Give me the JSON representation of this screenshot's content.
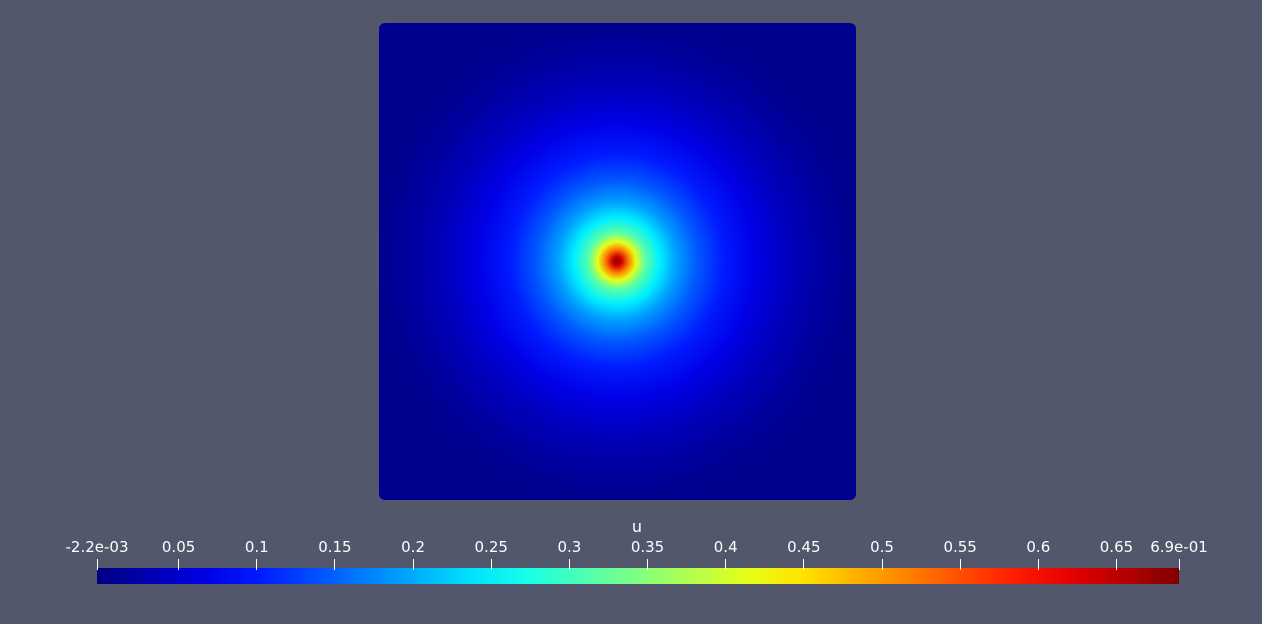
{
  "chart_data": {
    "type": "heatmap",
    "variable": "u",
    "colormap": "jet",
    "colors": {
      "background": "#52576b",
      "low": "#00007f",
      "high": "#7f0000"
    },
    "range": [
      -0.0022,
      0.69
    ],
    "peak": {
      "x": 0.5,
      "y": 0.5,
      "value": 0.69
    },
    "colorbar": {
      "title": "u",
      "ticks": [
        {
          "value": -0.0022,
          "label": "-2.2e-03"
        },
        {
          "value": 0.05,
          "label": "0.05"
        },
        {
          "value": 0.1,
          "label": "0.1"
        },
        {
          "value": 0.15,
          "label": "0.15"
        },
        {
          "value": 0.2,
          "label": "0.2"
        },
        {
          "value": 0.25,
          "label": "0.25"
        },
        {
          "value": 0.3,
          "label": "0.3"
        },
        {
          "value": 0.35,
          "label": "0.35"
        },
        {
          "value": 0.4,
          "label": "0.4"
        },
        {
          "value": 0.45,
          "label": "0.45"
        },
        {
          "value": 0.5,
          "label": "0.5"
        },
        {
          "value": 0.55,
          "label": "0.55"
        },
        {
          "value": 0.6,
          "label": "0.6"
        },
        {
          "value": 0.65,
          "label": "0.65"
        },
        {
          "value": 0.69,
          "label": "6.9e-01"
        }
      ]
    }
  }
}
